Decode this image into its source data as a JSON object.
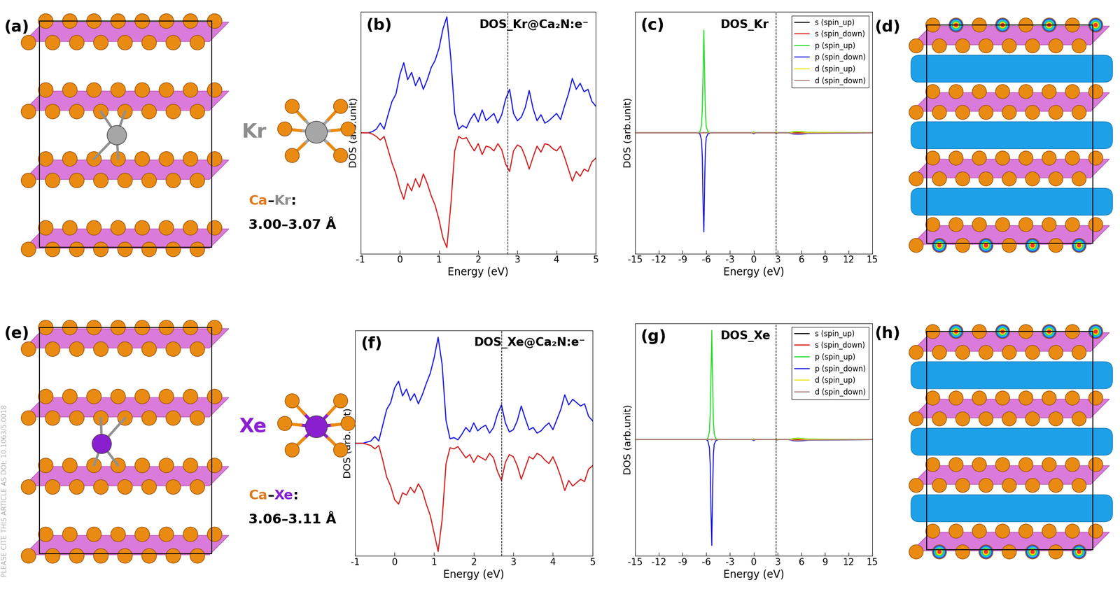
{
  "chart_data": [
    {
      "type": "line",
      "panel_label": "(b)",
      "title": "DOS_Kr@Ca₂N:e⁻",
      "x_label": "Energy (eV)",
      "y_label": "DOS (arb.unit)",
      "x": [
        -1.0,
        -0.9,
        -0.8,
        -0.7,
        -0.6,
        -0.5,
        -0.4,
        -0.3,
        -0.2,
        -0.1,
        0.0,
        0.1,
        0.2,
        0.3,
        0.4,
        0.5,
        0.6,
        0.7,
        0.8,
        0.9,
        1.0,
        1.1,
        1.2,
        1.3,
        1.4,
        1.5,
        1.6,
        1.7,
        1.8,
        1.9,
        2.0,
        2.1,
        2.2,
        2.3,
        2.4,
        2.5,
        2.6,
        2.7,
        2.8,
        2.9,
        3.0,
        3.1,
        3.2,
        3.3,
        3.4,
        3.5,
        3.6,
        3.7,
        3.8,
        3.9,
        4.0,
        4.1,
        4.2,
        4.3,
        4.4,
        4.5,
        4.6,
        4.7,
        4.8,
        4.9,
        5.0
      ],
      "series": [
        {
          "color": "#1a1ae6",
          "values": [
            0,
            0,
            0,
            0.1,
            0.3,
            0.8,
            0.3,
            1.5,
            2.6,
            3.2,
            4.8,
            5.8,
            4.4,
            5.0,
            3.9,
            4.6,
            3.6,
            4.4,
            5.4,
            6.0,
            7.0,
            8.6,
            9.6,
            6.2,
            1.6,
            0.3,
            0.6,
            0.4,
            1.1,
            1.6,
            0.9,
            1.9,
            1.0,
            1.3,
            1.6,
            0.8,
            1.5,
            2.8,
            3.6,
            1.6,
            1.0,
            1.3,
            2.1,
            3.5,
            2.0,
            1.0,
            1.5,
            0.8,
            1.0,
            1.3,
            1.6,
            1.1,
            2.2,
            3.2,
            4.5,
            3.6,
            4.1,
            3.4,
            3.6,
            2.6,
            2.2
          ]
        },
        {
          "color": "#d42020",
          "values": [
            0,
            0,
            0,
            -0.1,
            -0.3,
            -0.6,
            -0.3,
            -1.4,
            -2.5,
            -3.4,
            -4.6,
            -5.5,
            -4.2,
            -4.8,
            -3.8,
            -4.5,
            -3.4,
            -4.2,
            -5.2,
            -6.0,
            -7.2,
            -8.7,
            -9.5,
            -6.0,
            -1.5,
            -0.3,
            -0.5,
            -0.4,
            -1.0,
            -1.5,
            -0.9,
            -1.8,
            -1.1,
            -1.2,
            -1.5,
            -0.9,
            -1.4,
            -2.6,
            -3.2,
            -1.5,
            -1.0,
            -1.2,
            -2.0,
            -3.0,
            -2.0,
            -1.1,
            -1.6,
            -0.9,
            -1.0,
            -1.3,
            -1.5,
            -1.1,
            -2.0,
            -3.0,
            -4.0,
            -3.2,
            -3.6,
            -3.0,
            -3.2,
            -2.4,
            -2.1
          ]
        }
      ],
      "xlim": [
        -1,
        5
      ],
      "xticks": [
        -1,
        0,
        1,
        2,
        3,
        4,
        5
      ],
      "ylim": [
        -10,
        10
      ],
      "yticks": [],
      "tick_labels": "x",
      "fermi_level": 2.75
    },
    {
      "type": "line",
      "panel_label": "(c)",
      "title": "DOS_Kr",
      "x_label": "Energy (eV)",
      "y_label": "DOS (arb.unit)",
      "x": [
        -15,
        -7.0,
        -6.8,
        -6.6,
        -6.5,
        -6.4,
        -6.3,
        -6.2,
        -6.1,
        -6.0,
        -5.8,
        -5.5,
        -0.2,
        0.0,
        0.2,
        2.7,
        2.9,
        3.1,
        4.4,
        5.0,
        5.6,
        6.2,
        6.8,
        15
      ],
      "series": [
        {
          "name": "s (spin_up)",
          "color": "#000000",
          "values": [
            0,
            0,
            0,
            0,
            0,
            0,
            0.02,
            0,
            0,
            0,
            0,
            0,
            0,
            0.04,
            0,
            0,
            0.03,
            0,
            0,
            0.03,
            0.02,
            0,
            0,
            0
          ]
        },
        {
          "name": "s (spin_down)",
          "color": "#e01010",
          "values": [
            0,
            0,
            0,
            0,
            0,
            0,
            -0.02,
            0,
            0,
            0,
            0,
            0,
            0,
            -0.04,
            0,
            0,
            -0.03,
            0,
            0,
            -0.03,
            -0.02,
            0,
            0,
            0
          ]
        },
        {
          "name": "p (spin_up)",
          "color": "#22dd22",
          "values": [
            0,
            0,
            0.1,
            0.6,
            2.0,
            5.0,
            8.5,
            4.5,
            1.5,
            0.5,
            0.1,
            0,
            0,
            0.08,
            0,
            0,
            0.05,
            0,
            0,
            0.1,
            0.12,
            0.1,
            0.05,
            0
          ]
        },
        {
          "name": "p (spin_down)",
          "color": "#1515e0",
          "values": [
            0,
            0,
            -0.1,
            -0.6,
            -2.0,
            -6.0,
            -8.2,
            -4.0,
            -1.2,
            -0.4,
            -0.1,
            0,
            0,
            -0.08,
            0,
            0,
            -0.05,
            0,
            0,
            -0.1,
            -0.12,
            -0.1,
            -0.05,
            0
          ]
        },
        {
          "name": "d (spin_up)",
          "color": "#e6e600",
          "values": [
            0,
            0,
            0,
            0,
            0,
            0,
            0,
            0,
            0,
            0,
            0,
            0,
            0,
            0.03,
            0,
            0,
            0.04,
            0,
            0,
            0.06,
            0.08,
            0.06,
            0.03,
            0
          ]
        },
        {
          "name": "d (spin_down)",
          "color": "#b07a7a",
          "values": [
            0,
            0,
            0,
            0,
            0,
            0,
            0,
            0,
            0,
            0,
            0,
            0,
            0,
            -0.03,
            0,
            0,
            -0.04,
            0,
            0,
            -0.06,
            -0.08,
            -0.06,
            -0.03,
            0
          ]
        }
      ],
      "xlim": [
        -15,
        15
      ],
      "xticks": [
        -15,
        -12,
        -9,
        -6,
        -3,
        0,
        3,
        6,
        9,
        12,
        15
      ],
      "ylim": [
        -10,
        10
      ],
      "yticks": [],
      "tick_labels": "x",
      "legend": "upper right",
      "fermi_level": 2.8
    },
    {
      "type": "line",
      "panel_label": "(f)",
      "title": "DOS_Xe@Ca₂N:e⁻",
      "x_label": "Energy (eV)",
      "y_label": "DOS (arb.unit)",
      "x": [
        -1.0,
        -0.9,
        -0.8,
        -0.7,
        -0.6,
        -0.5,
        -0.4,
        -0.3,
        -0.2,
        -0.1,
        0.0,
        0.1,
        0.2,
        0.3,
        0.4,
        0.5,
        0.6,
        0.7,
        0.8,
        0.9,
        1.0,
        1.1,
        1.2,
        1.3,
        1.4,
        1.5,
        1.6,
        1.7,
        1.8,
        1.9,
        2.0,
        2.1,
        2.2,
        2.3,
        2.4,
        2.5,
        2.6,
        2.7,
        2.8,
        2.9,
        3.0,
        3.1,
        3.2,
        3.3,
        3.4,
        3.5,
        3.6,
        3.7,
        3.8,
        3.9,
        4.0,
        4.1,
        4.2,
        4.3,
        4.4,
        4.5,
        4.6,
        4.7,
        4.8,
        4.9,
        5.0
      ],
      "series": [
        {
          "color": "#1a1ae6",
          "values": [
            0,
            0,
            0,
            0.1,
            0.2,
            0.6,
            0.2,
            1.6,
            3.0,
            3.6,
            4.9,
            5.5,
            4.2,
            4.8,
            3.8,
            4.4,
            3.5,
            4.3,
            5.3,
            6.2,
            7.6,
            9.4,
            7.0,
            2.0,
            0.4,
            0.5,
            0.3,
            0.8,
            1.4,
            1.0,
            1.8,
            1.1,
            1.4,
            1.6,
            0.9,
            1.4,
            2.6,
            3.4,
            1.8,
            1.0,
            1.2,
            2.0,
            3.3,
            2.2,
            1.2,
            1.4,
            0.9,
            1.1,
            1.5,
            1.8,
            1.2,
            2.1,
            3.0,
            4.3,
            3.4,
            3.9,
            3.6,
            3.3,
            3.5,
            2.4,
            2.0
          ]
        },
        {
          "color": "#d42020",
          "values": [
            0,
            0,
            0,
            -0.1,
            -0.2,
            -0.5,
            -0.2,
            -1.5,
            -3.0,
            -3.8,
            -5.0,
            -5.4,
            -4.4,
            -4.6,
            -3.9,
            -4.4,
            -3.6,
            -4.2,
            -5.4,
            -6.4,
            -8.0,
            -9.6,
            -6.8,
            -1.8,
            -0.4,
            -0.5,
            -0.3,
            -0.8,
            -1.3,
            -1.0,
            -1.7,
            -1.1,
            -1.3,
            -1.5,
            -0.9,
            -1.3,
            -2.5,
            -3.3,
            -1.7,
            -1.0,
            -1.2,
            -2.0,
            -3.2,
            -2.2,
            -1.2,
            -1.4,
            -0.9,
            -1.1,
            -1.5,
            -1.8,
            -1.2,
            -2.0,
            -3.0,
            -4.2,
            -3.3,
            -3.8,
            -3.5,
            -3.2,
            -3.4,
            -2.3,
            -2.0
          ]
        }
      ],
      "xlim": [
        -1,
        5
      ],
      "xticks": [
        -1,
        0,
        1,
        2,
        3,
        4,
        5
      ],
      "ylim": [
        -10,
        10
      ],
      "yticks": [],
      "tick_labels": "x",
      "fermi_level": 2.7
    },
    {
      "type": "line",
      "panel_label": "(g)",
      "title": "DOS_Xe",
      "x_label": "Energy (eV)",
      "y_label": "DOS (arb.unit)",
      "x": [
        -15,
        -6.0,
        -5.8,
        -5.6,
        -5.5,
        -5.4,
        -5.3,
        -5.2,
        -5.1,
        -5.0,
        -4.8,
        -4.5,
        -0.2,
        0.0,
        0.2,
        2.7,
        2.9,
        3.1,
        4.4,
        5.0,
        5.6,
        6.2,
        6.8,
        15
      ],
      "series": [
        {
          "name": "s (spin_up)",
          "color": "#000000",
          "values": [
            0,
            0,
            0,
            0,
            0,
            0,
            0.02,
            0,
            0,
            0,
            0,
            0,
            0,
            0.04,
            0,
            0,
            0.03,
            0,
            0,
            0.03,
            0.02,
            0,
            0,
            0
          ]
        },
        {
          "name": "s (spin_down)",
          "color": "#e01010",
          "values": [
            0,
            0,
            0,
            0,
            0,
            0,
            -0.02,
            0,
            0,
            0,
            0,
            0,
            0,
            -0.04,
            0,
            0,
            -0.03,
            0,
            0,
            -0.03,
            -0.02,
            0,
            0,
            0
          ]
        },
        {
          "name": "p (spin_up)",
          "color": "#22dd22",
          "values": [
            0,
            0,
            0.1,
            0.7,
            2.3,
            5.5,
            9.4,
            5.0,
            1.6,
            0.5,
            0.1,
            0,
            0,
            0.08,
            0,
            0,
            0.05,
            0,
            0,
            0.1,
            0.12,
            0.1,
            0.05,
            0
          ]
        },
        {
          "name": "p (spin_down)",
          "color": "#1515e0",
          "values": [
            0,
            0,
            -0.1,
            -0.7,
            -2.2,
            -6.3,
            -9.1,
            -4.4,
            -1.3,
            -0.4,
            -0.1,
            0,
            0,
            -0.08,
            0,
            0,
            -0.05,
            0,
            0,
            -0.1,
            -0.12,
            -0.1,
            -0.05,
            0
          ]
        },
        {
          "name": "d (spin_up)",
          "color": "#e6e600",
          "values": [
            0,
            0,
            0,
            0,
            0,
            0,
            0,
            0,
            0,
            0,
            0,
            0,
            0,
            0.03,
            0,
            0,
            0.04,
            0,
            0,
            0.06,
            0.08,
            0.06,
            0.03,
            0
          ]
        },
        {
          "name": "d (spin_down)",
          "color": "#b07a7a",
          "values": [
            0,
            0,
            0,
            0,
            0,
            0,
            0,
            0,
            0,
            0,
            0,
            0,
            0,
            -0.03,
            0,
            0,
            -0.04,
            0,
            0,
            -0.06,
            -0.08,
            -0.06,
            -0.03,
            0
          ]
        }
      ],
      "xlim": [
        -15,
        15
      ],
      "xticks": [
        -15,
        -12,
        -9,
        -6,
        -3,
        0,
        3,
        6,
        9,
        12,
        15
      ],
      "ylim": [
        -10,
        10
      ],
      "yticks": [],
      "tick_labels": "x",
      "legend": "upper right",
      "fermi_level": 2.8
    }
  ],
  "structures": [
    {
      "panel_label": "(a)",
      "guest": "Kr",
      "guest_color": "#a6a6a6",
      "label_color": "#8c8c8c",
      "bond_label": [
        {
          "text": "Ca",
          "color": "#e07b20"
        },
        {
          "text": "–",
          "color": "#000000"
        },
        {
          "text": "Kr",
          "color": "#8c8c8c"
        },
        {
          "text": ":",
          "color": "#000000"
        }
      ],
      "bond_length": "3.00–3.07 Å"
    },
    {
      "panel_label": "(e)",
      "guest": "Xe",
      "guest_color": "#8a1fd0",
      "label_color": "#8a1fd0",
      "bond_label": [
        {
          "text": "Ca",
          "color": "#e07b20"
        },
        {
          "text": "–",
          "color": "#000000"
        },
        {
          "text": "Xe",
          "color": "#8a1fd0"
        },
        {
          "text": ":",
          "color": "#000000"
        }
      ],
      "bond_length": "3.06–3.11 Å"
    }
  ],
  "density_panels": [
    {
      "panel_label": "(d)"
    },
    {
      "panel_label": "(h)"
    }
  ],
  "watermark": "PLEASE CITE THIS ARTICLE AS DOI: 10.1063/5.0018"
}
